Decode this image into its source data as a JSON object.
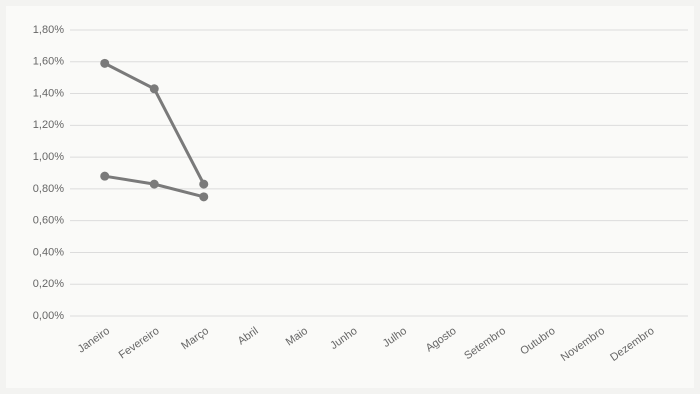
{
  "chart_data": {
    "type": "line",
    "categories": [
      "Janeiro",
      "Fevereiro",
      "Março",
      "Abril",
      "Maio",
      "Junho",
      "Julho",
      "Agosto",
      "Setembro",
      "Outubro",
      "Novembro",
      "Dezembro"
    ],
    "series": [
      {
        "color": "#7a7a7a",
        "values": [
          1.59,
          1.43,
          0.83,
          null,
          null,
          null,
          null,
          null,
          null,
          null,
          null,
          null
        ]
      },
      {
        "color": "#7a7a7a",
        "values": [
          0.88,
          0.83,
          0.75,
          null,
          null,
          null,
          null,
          null,
          null,
          null,
          null,
          null
        ]
      }
    ],
    "ylim": [
      0,
      1.8
    ],
    "yticks": [
      {
        "value": 0,
        "label": "0,00%"
      },
      {
        "value": 0.2,
        "label": "0,20%"
      },
      {
        "value": 0.4,
        "label": "0,40%"
      },
      {
        "value": 0.6,
        "label": "0,60%"
      },
      {
        "value": 0.8,
        "label": "0,80%"
      },
      {
        "value": 1.0,
        "label": "1,00%"
      },
      {
        "value": 1.2,
        "label": "1,20%"
      },
      {
        "value": 1.4,
        "label": "1,40%"
      },
      {
        "value": 1.6,
        "label": "1,60%"
      },
      {
        "value": 1.8,
        "label": "1,80%"
      }
    ],
    "grid": true
  }
}
